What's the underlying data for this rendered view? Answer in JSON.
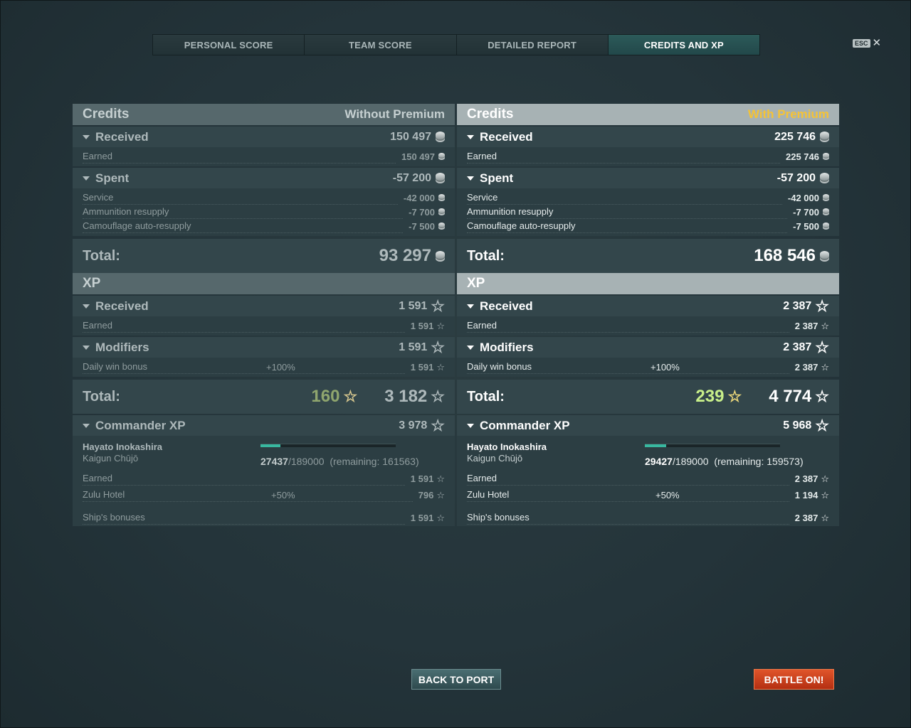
{
  "tabs": [
    "PERSONAL SCORE",
    "TEAM SCORE",
    "DETAILED REPORT",
    "CREDITS AND XP"
  ],
  "esc": {
    "key": "ESC",
    "close": "✕"
  },
  "columns": {
    "left": {
      "credits_title": "Credits",
      "credits_mode": "Without Premium",
      "received_label": "Received",
      "received_value": "150 497",
      "earned_label": "Earned",
      "earned_value": "150 497",
      "spent_label": "Spent",
      "spent_value": "-57 200",
      "spent_items": [
        {
          "label": "Service",
          "value": "-42 000"
        },
        {
          "label": "Ammunition resupply",
          "value": "-7 700"
        },
        {
          "label": "Camouflage auto-resupply",
          "value": "-7 500"
        }
      ],
      "credits_total_label": "Total:",
      "credits_total": "93 297",
      "xp_title": "XP",
      "xp_received_label": "Received",
      "xp_received_value": "1 591",
      "xp_earned_label": "Earned",
      "xp_earned_value": "1 591",
      "modifiers_label": "Modifiers",
      "modifiers_value": "1 591",
      "daily_label": "Daily win bonus",
      "daily_pct": "+100%",
      "daily_value": "1 591",
      "xp_total_label": "Total:",
      "xp_total_free": "160",
      "xp_total": "3 182",
      "commander_label": "Commander XP",
      "commander_value": "3 978",
      "commander_name": "Hayato Inokashira",
      "commander_rank": "Kaigun Chūjō",
      "commander_current": "27437",
      "commander_max": "/189000",
      "commander_remaining": "(remaining: 161563)",
      "commander_progress": 0.145,
      "cmd_earned_label": "Earned",
      "cmd_earned_value": "1 591",
      "zulu_label": "Zulu Hotel",
      "zulu_pct": "+50%",
      "zulu_value": "796",
      "ship_label": "Ship's bonuses",
      "ship_value": "1 591"
    },
    "right": {
      "credits_title": "Credits",
      "credits_mode": "With Premium",
      "received_label": "Received",
      "received_value": "225 746",
      "earned_label": "Earned",
      "earned_value": "225 746",
      "spent_label": "Spent",
      "spent_value": "-57 200",
      "spent_items": [
        {
          "label": "Service",
          "value": "-42 000"
        },
        {
          "label": "Ammunition resupply",
          "value": "-7 700"
        },
        {
          "label": "Camouflage auto-resupply",
          "value": "-7 500"
        }
      ],
      "credits_total_label": "Total:",
      "credits_total": "168 546",
      "xp_title": "XP",
      "xp_received_label": "Received",
      "xp_received_value": "2 387",
      "xp_earned_label": "Earned",
      "xp_earned_value": "2 387",
      "modifiers_label": "Modifiers",
      "modifiers_value": "2 387",
      "daily_label": "Daily win bonus",
      "daily_pct": "+100%",
      "daily_value": "2 387",
      "xp_total_label": "Total:",
      "xp_total_free": "239",
      "xp_total": "4 774",
      "commander_label": "Commander XP",
      "commander_value": "5 968",
      "commander_name": "Hayato Inokashira",
      "commander_rank": "Kaigun Chūjō",
      "commander_current": "29427",
      "commander_max": "/189000",
      "commander_remaining": "(remaining: 159573)",
      "commander_progress": 0.156,
      "cmd_earned_label": "Earned",
      "cmd_earned_value": "2 387",
      "zulu_label": "Zulu Hotel",
      "zulu_pct": "+50%",
      "zulu_value": "1 194",
      "ship_label": "Ship's bonuses",
      "ship_value": "2 387"
    }
  },
  "buttons": {
    "back": "BACK TO PORT",
    "battle": "BATTLE ON!"
  },
  "colors": {
    "premium": "#f5c336",
    "accent": "#38b8a0",
    "battle": "#c8401c"
  }
}
